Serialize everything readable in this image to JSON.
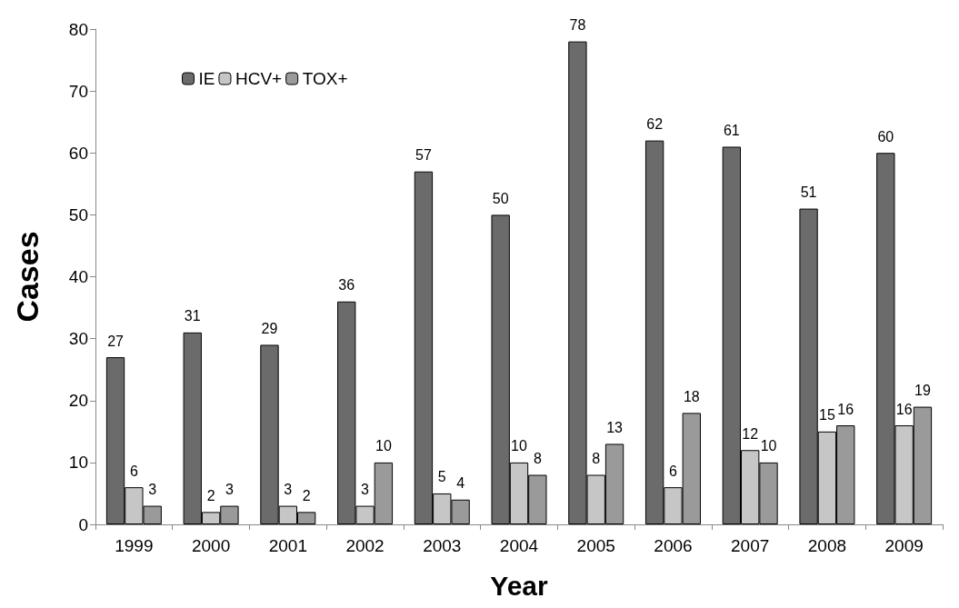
{
  "chart_data": {
    "type": "bar",
    "xlabel": "Year",
    "ylabel": "Cases",
    "categories": [
      "1999",
      "2000",
      "2001",
      "2002",
      "2003",
      "2004",
      "2005",
      "2006",
      "2007",
      "2008",
      "2009"
    ],
    "series": [
      {
        "name": "IE",
        "color": "#6b6b6b",
        "values": [
          27,
          31,
          29,
          36,
          57,
          50,
          78,
          62,
          61,
          51,
          60
        ]
      },
      {
        "name": "HCV+",
        "color": "#c6c6c6",
        "values": [
          6,
          2,
          3,
          3,
          5,
          10,
          8,
          6,
          12,
          15,
          16
        ]
      },
      {
        "name": "TOX+",
        "color": "#9a9a9a",
        "values": [
          3,
          3,
          2,
          10,
          4,
          8,
          13,
          18,
          10,
          16,
          19
        ]
      }
    ],
    "ylim": [
      0,
      80
    ],
    "yticks": [
      0,
      10,
      20,
      30,
      40,
      50,
      60,
      70,
      80
    ],
    "data_labels": true,
    "legend": "top left",
    "grid": false
  }
}
